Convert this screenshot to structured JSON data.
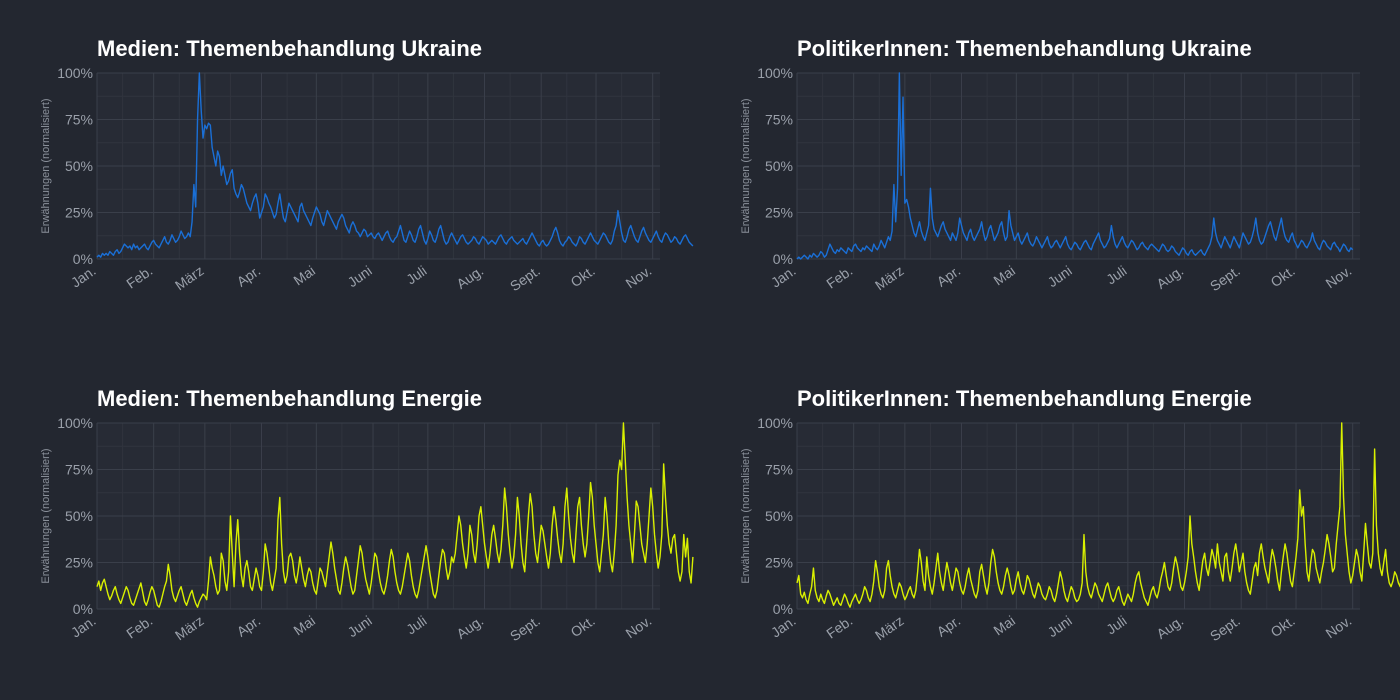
{
  "colors": {
    "background": "#232730",
    "ukraine_line": "#1a6fd6",
    "energie_line": "#d9f000"
  },
  "chart_data": [
    {
      "type": "line",
      "title": "Medien: Themenbehandlung Ukraine",
      "ylabel": "Erwähnungen (normalisiert)",
      "xlabel": "",
      "ylim": [
        0,
        100
      ],
      "yticks": [
        "0%",
        "25%",
        "50%",
        "75%",
        "100%"
      ],
      "x_month_labels": [
        "Jan.",
        "Feb.",
        "März",
        "Apr.",
        "Mai",
        "Juni",
        "Juli",
        "Aug.",
        "Sept.",
        "Okt.",
        "Nov."
      ],
      "grid": true,
      "color": "#1a6fd6",
      "x_start": "2022-01-01",
      "values": [
        1,
        2,
        1,
        3,
        2,
        3,
        2,
        4,
        3,
        2,
        4,
        5,
        3,
        4,
        6,
        8,
        7,
        6,
        7,
        5,
        8,
        6,
        7,
        5,
        6,
        7,
        8,
        6,
        5,
        7,
        9,
        10,
        8,
        7,
        6,
        8,
        10,
        12,
        9,
        8,
        10,
        13,
        11,
        9,
        10,
        12,
        15,
        13,
        11,
        12,
        14,
        12,
        20,
        40,
        28,
        75,
        100,
        80,
        65,
        72,
        70,
        73,
        72,
        60,
        55,
        50,
        58,
        55,
        45,
        50,
        45,
        40,
        42,
        46,
        48,
        38,
        35,
        33,
        36,
        40,
        38,
        34,
        30,
        28,
        26,
        30,
        33,
        35,
        30,
        22,
        25,
        28,
        35,
        33,
        30,
        28,
        25,
        22,
        24,
        30,
        35,
        28,
        22,
        20,
        25,
        30,
        28,
        26,
        24,
        22,
        20,
        28,
        30,
        26,
        24,
        22,
        20,
        18,
        22,
        25,
        28,
        26,
        24,
        20,
        18,
        22,
        26,
        24,
        22,
        20,
        18,
        16,
        20,
        22,
        24,
        22,
        18,
        16,
        14,
        18,
        20,
        18,
        15,
        14,
        12,
        14,
        16,
        15,
        12,
        13,
        14,
        12,
        11,
        13,
        14,
        12,
        10,
        12,
        14,
        15,
        12,
        10,
        9,
        11,
        12,
        15,
        18,
        14,
        10,
        9,
        12,
        15,
        13,
        10,
        9,
        12,
        16,
        18,
        14,
        10,
        8,
        11,
        15,
        13,
        10,
        9,
        12,
        16,
        18,
        14,
        10,
        8,
        9,
        12,
        14,
        12,
        10,
        8,
        10,
        12,
        13,
        11,
        9,
        8,
        9,
        10,
        12,
        11,
        9,
        8,
        10,
        12,
        11,
        10,
        8,
        9,
        10,
        9,
        8,
        10,
        12,
        13,
        11,
        9,
        8,
        10,
        11,
        12,
        10,
        9,
        8,
        9,
        10,
        11,
        9,
        8,
        10,
        12,
        14,
        12,
        10,
        8,
        7,
        9,
        10,
        8,
        7,
        8,
        10,
        12,
        15,
        17,
        14,
        10,
        8,
        7,
        9,
        10,
        12,
        11,
        9,
        8,
        7,
        9,
        12,
        11,
        9,
        8,
        10,
        12,
        14,
        12,
        10,
        9,
        8,
        10,
        12,
        14,
        13,
        11,
        9,
        8,
        10,
        15,
        18,
        26,
        20,
        14,
        10,
        9,
        12,
        16,
        18,
        15,
        12,
        10,
        9,
        12,
        15,
        17,
        14,
        12,
        10,
        9,
        11,
        13,
        15,
        12,
        10,
        9,
        12,
        14,
        13,
        11,
        9,
        10,
        12,
        11,
        9,
        8,
        10,
        12,
        13,
        11,
        9,
        8,
        7
      ]
    },
    {
      "type": "line",
      "title": "PolitikerInnen: Themenbehandlung Ukraine",
      "ylabel": "Erwähnungen (normalisiert)",
      "xlabel": "",
      "ylim": [
        0,
        100
      ],
      "yticks": [
        "0%",
        "25%",
        "50%",
        "75%",
        "100%"
      ],
      "x_month_labels": [
        "Jan.",
        "Feb.",
        "März",
        "Apr.",
        "Mai",
        "Juni",
        "Juli",
        "Aug.",
        "Sept.",
        "Okt.",
        "Nov."
      ],
      "grid": true,
      "color": "#1a6fd6",
      "x_start": "2022-01-01",
      "values": [
        0,
        1,
        0,
        1,
        2,
        1,
        0,
        2,
        1,
        3,
        2,
        1,
        2,
        4,
        3,
        1,
        2,
        5,
        8,
        6,
        4,
        3,
        5,
        4,
        6,
        5,
        4,
        3,
        6,
        5,
        4,
        7,
        8,
        6,
        5,
        4,
        6,
        5,
        7,
        6,
        5,
        4,
        8,
        6,
        5,
        7,
        10,
        8,
        6,
        9,
        12,
        10,
        15,
        40,
        20,
        38,
        100,
        45,
        87,
        30,
        32,
        28,
        22,
        18,
        14,
        12,
        16,
        20,
        15,
        12,
        10,
        14,
        18,
        38,
        22,
        16,
        14,
        12,
        15,
        18,
        20,
        16,
        14,
        12,
        10,
        14,
        12,
        10,
        14,
        22,
        18,
        14,
        12,
        10,
        14,
        16,
        12,
        10,
        12,
        14,
        16,
        20,
        14,
        10,
        12,
        16,
        18,
        14,
        10,
        12,
        14,
        18,
        20,
        14,
        10,
        12,
        26,
        18,
        14,
        10,
        12,
        14,
        10,
        8,
        10,
        12,
        14,
        10,
        8,
        7,
        9,
        12,
        10,
        8,
        6,
        8,
        10,
        12,
        8,
        6,
        7,
        9,
        10,
        8,
        6,
        8,
        10,
        12,
        8,
        6,
        5,
        7,
        9,
        8,
        6,
        5,
        7,
        9,
        10,
        8,
        6,
        5,
        8,
        10,
        12,
        14,
        10,
        8,
        6,
        7,
        9,
        11,
        18,
        12,
        8,
        6,
        8,
        10,
        12,
        9,
        7,
        6,
        8,
        10,
        9,
        7,
        5,
        6,
        8,
        9,
        7,
        6,
        5,
        7,
        8,
        7,
        6,
        5,
        4,
        6,
        8,
        7,
        5,
        4,
        5,
        7,
        6,
        4,
        3,
        2,
        4,
        6,
        5,
        3,
        2,
        4,
        5,
        3,
        2,
        3,
        4,
        5,
        3,
        2,
        4,
        6,
        8,
        12,
        22,
        14,
        10,
        8,
        6,
        9,
        12,
        10,
        8,
        6,
        9,
        12,
        10,
        8,
        6,
        10,
        14,
        12,
        10,
        8,
        9,
        12,
        16,
        22,
        14,
        10,
        8,
        9,
        12,
        15,
        18,
        20,
        16,
        12,
        10,
        14,
        18,
        22,
        16,
        12,
        10,
        9,
        12,
        14,
        10,
        8,
        6,
        8,
        10,
        9,
        7,
        6,
        8,
        10,
        14,
        10,
        8,
        6,
        5,
        8,
        10,
        9,
        7,
        6,
        5,
        8,
        9,
        7,
        6,
        4,
        6,
        8,
        7,
        5,
        4,
        6,
        5
      ]
    },
    {
      "type": "line",
      "title": "Medien: Themenbehandlung Energie",
      "ylabel": "Erwähnungen (normalisiert)",
      "xlabel": "",
      "ylim": [
        0,
        100
      ],
      "yticks": [
        "0%",
        "25%",
        "50%",
        "75%",
        "100%"
      ],
      "x_month_labels": [
        "Jan.",
        "Feb.",
        "März",
        "Apr.",
        "Mai",
        "Juni",
        "Juli",
        "Aug.",
        "Sept.",
        "Okt.",
        "Nov."
      ],
      "grid": true,
      "color": "#d9f000",
      "x_start": "2022-01-01",
      "values": [
        12,
        15,
        10,
        14,
        16,
        12,
        8,
        5,
        7,
        10,
        12,
        8,
        5,
        3,
        6,
        9,
        12,
        10,
        6,
        3,
        2,
        5,
        8,
        11,
        14,
        9,
        4,
        2,
        5,
        9,
        12,
        10,
        6,
        2,
        1,
        4,
        8,
        12,
        15,
        24,
        18,
        10,
        6,
        4,
        7,
        10,
        12,
        8,
        4,
        2,
        5,
        8,
        10,
        6,
        3,
        1,
        4,
        6,
        8,
        7,
        5,
        15,
        28,
        22,
        18,
        12,
        8,
        10,
        30,
        26,
        15,
        10,
        20,
        50,
        30,
        12,
        35,
        48,
        30,
        18,
        12,
        22,
        26,
        20,
        12,
        10,
        16,
        22,
        18,
        12,
        10,
        20,
        35,
        30,
        22,
        14,
        10,
        16,
        22,
        48,
        60,
        35,
        20,
        14,
        18,
        28,
        30,
        26,
        18,
        14,
        20,
        28,
        22,
        16,
        12,
        18,
        22,
        20,
        14,
        10,
        8,
        15,
        22,
        20,
        16,
        12,
        20,
        28,
        36,
        30,
        22,
        16,
        10,
        8,
        14,
        22,
        28,
        24,
        18,
        12,
        8,
        10,
        18,
        26,
        34,
        30,
        22,
        16,
        12,
        8,
        14,
        22,
        30,
        28,
        20,
        14,
        10,
        8,
        12,
        18,
        26,
        32,
        28,
        20,
        14,
        10,
        8,
        12,
        18,
        24,
        30,
        26,
        18,
        12,
        8,
        6,
        10,
        16,
        22,
        28,
        34,
        28,
        20,
        14,
        8,
        6,
        10,
        18,
        26,
        32,
        30,
        22,
        16,
        20,
        28,
        25,
        30,
        40,
        50,
        45,
        35,
        28,
        22,
        30,
        45,
        40,
        30,
        25,
        35,
        50,
        55,
        45,
        35,
        28,
        22,
        30,
        40,
        45,
        38,
        30,
        25,
        32,
        45,
        65,
        55,
        40,
        30,
        22,
        28,
        40,
        60,
        50,
        35,
        25,
        20,
        35,
        50,
        62,
        55,
        40,
        30,
        25,
        35,
        45,
        42,
        35,
        28,
        22,
        30,
        45,
        55,
        48,
        38,
        30,
        25,
        35,
        55,
        65,
        50,
        38,
        30,
        25,
        40,
        55,
        60,
        45,
        35,
        28,
        35,
        50,
        68,
        60,
        45,
        35,
        25,
        20,
        30,
        40,
        60,
        50,
        35,
        25,
        20,
        30,
        45,
        72,
        80,
        75,
        100,
        80,
        60,
        45,
        35,
        25,
        40,
        58,
        55,
        45,
        35,
        30,
        25,
        35,
        50,
        65,
        55,
        40,
        30,
        22,
        28,
        40,
        78,
        60,
        45,
        35,
        30,
        38,
        40,
        30,
        20,
        15,
        20,
        40,
        28,
        38,
        20,
        14,
        28
      ]
    },
    {
      "type": "line",
      "title": "PolitikerInnen: Themenbehandlung Energie",
      "ylabel": "Erwähnungen (normalisiert)",
      "xlabel": "",
      "ylim": [
        0,
        100
      ],
      "yticks": [
        "0%",
        "25%",
        "50%",
        "75%",
        "100%"
      ],
      "x_month_labels": [
        "Jan.",
        "Feb.",
        "März",
        "Apr.",
        "Mai",
        "Juni",
        "Juli",
        "Aug.",
        "Sept.",
        "Okt.",
        "Nov."
      ],
      "grid": true,
      "color": "#d9f000",
      "x_start": "2022-01-01",
      "values": [
        14,
        18,
        8,
        6,
        9,
        5,
        3,
        8,
        12,
        22,
        10,
        6,
        4,
        8,
        5,
        3,
        7,
        10,
        8,
        5,
        2,
        4,
        6,
        3,
        2,
        5,
        8,
        6,
        3,
        1,
        4,
        6,
        8,
        5,
        3,
        5,
        8,
        12,
        10,
        6,
        4,
        8,
        15,
        26,
        20,
        12,
        8,
        6,
        10,
        22,
        26,
        18,
        12,
        8,
        6,
        10,
        14,
        12,
        8,
        5,
        7,
        10,
        12,
        8,
        6,
        10,
        20,
        32,
        25,
        15,
        10,
        28,
        18,
        12,
        8,
        14,
        22,
        30,
        20,
        14,
        10,
        18,
        25,
        20,
        14,
        10,
        16,
        22,
        20,
        14,
        10,
        8,
        12,
        18,
        22,
        16,
        12,
        8,
        6,
        10,
        20,
        24,
        18,
        12,
        8,
        14,
        25,
        32,
        28,
        20,
        14,
        10,
        8,
        12,
        18,
        22,
        18,
        12,
        8,
        10,
        16,
        20,
        14,
        10,
        8,
        12,
        18,
        16,
        12,
        8,
        6,
        10,
        14,
        12,
        8,
        6,
        5,
        8,
        12,
        10,
        6,
        4,
        8,
        14,
        20,
        16,
        10,
        6,
        4,
        8,
        12,
        10,
        6,
        4,
        5,
        8,
        14,
        40,
        20,
        12,
        8,
        6,
        10,
        14,
        12,
        8,
        6,
        4,
        8,
        12,
        14,
        10,
        6,
        4,
        6,
        10,
        12,
        8,
        4,
        2,
        5,
        8,
        6,
        4,
        8,
        14,
        18,
        20,
        14,
        10,
        6,
        4,
        2,
        6,
        10,
        12,
        8,
        6,
        10,
        16,
        20,
        25,
        18,
        12,
        10,
        14,
        22,
        28,
        24,
        18,
        12,
        10,
        14,
        20,
        28,
        50,
        35,
        28,
        20,
        14,
        10,
        18,
        26,
        30,
        22,
        18,
        25,
        32,
        28,
        22,
        35,
        25,
        20,
        15,
        28,
        30,
        20,
        15,
        22,
        30,
        35,
        28,
        20,
        25,
        30,
        20,
        14,
        10,
        8,
        15,
        22,
        25,
        18,
        30,
        35,
        28,
        22,
        18,
        14,
        25,
        32,
        28,
        22,
        15,
        10,
        20,
        28,
        35,
        30,
        22,
        15,
        12,
        20,
        28,
        38,
        64,
        50,
        55,
        35,
        20,
        15,
        25,
        32,
        30,
        22,
        18,
        14,
        20,
        25,
        32,
        40,
        35,
        28,
        20,
        22,
        35,
        45,
        55,
        100,
        60,
        40,
        30,
        20,
        14,
        18,
        25,
        32,
        28,
        20,
        15,
        30,
        46,
        35,
        25,
        22,
        30,
        86,
        45,
        30,
        22,
        18,
        25,
        32,
        20,
        14,
        12,
        15,
        20,
        18,
        14,
        12,
        26
      ]
    }
  ]
}
